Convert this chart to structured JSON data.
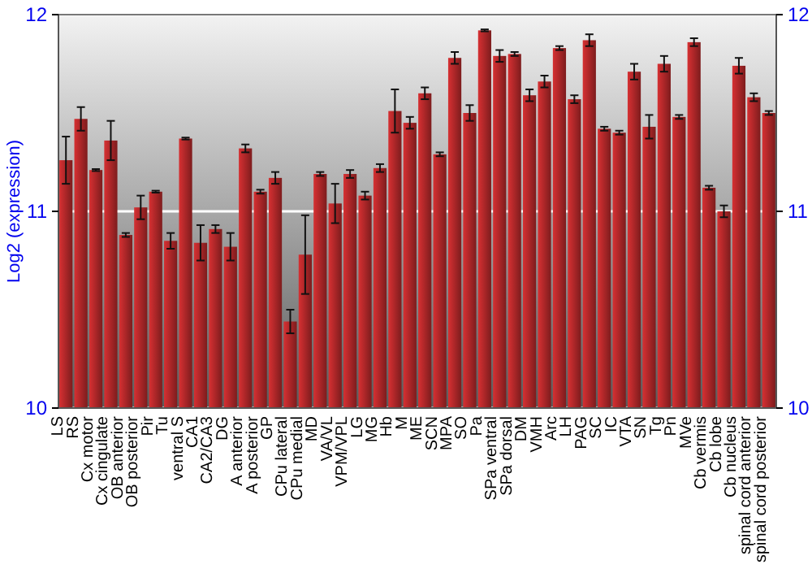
{
  "chart_data": {
    "type": "bar",
    "ylabel": "Log2 (expression)",
    "categories": [
      "LS",
      "RS",
      "Cx motor",
      "Cx cingulate",
      "OB anterior",
      "OB posterior",
      "Pir",
      "Tu",
      "ventral S",
      "CA1",
      "CA2/CA3",
      "DG",
      "A anterior",
      "A posterior",
      "GP",
      "CPu lateral",
      "CPu medial",
      "MD",
      "VA/VL",
      "VPM/VPL",
      "LG",
      "MG",
      "Hb",
      "M",
      "ME",
      "SCN",
      "MPA",
      "SO",
      "Pa",
      "SPa ventral",
      "SPa dorsal",
      "DM",
      "VMH",
      "Arc",
      "LH",
      "PAG",
      "SC",
      "IC",
      "VTA",
      "SN",
      "Tg",
      "Pn",
      "MVe",
      "Cb vermis",
      "Cb lobe",
      "Cb nucleus",
      "spinal cord anterior",
      "spinal cord posterior"
    ],
    "series": [
      {
        "color": "#b3282a",
        "values": [
          11.26,
          11.47,
          11.21,
          11.36,
          10.88,
          11.02,
          11.1,
          10.85,
          11.37,
          10.84,
          10.91,
          10.82,
          11.32,
          11.1,
          11.17,
          10.44,
          10.78,
          11.19,
          11.04,
          11.19,
          11.08,
          11.22,
          11.51,
          11.45,
          11.6,
          11.29,
          11.78,
          11.5,
          11.92,
          11.79,
          11.8,
          11.59,
          11.66,
          11.83,
          11.57,
          11.87,
          11.42,
          11.4,
          11.71,
          11.43,
          11.75,
          11.48,
          11.86,
          11.12,
          11.0,
          11.74,
          11.58,
          11.5
        ],
        "errors": [
          0.12,
          0.06,
          0.005,
          0.1,
          0.01,
          0.06,
          0.005,
          0.04,
          0.005,
          0.09,
          0.02,
          0.07,
          0.02,
          0.01,
          0.03,
          0.06,
          0.2,
          0.01,
          0.1,
          0.02,
          0.02,
          0.02,
          0.11,
          0.03,
          0.03,
          0.01,
          0.03,
          0.04,
          0.005,
          0.03,
          0.01,
          0.03,
          0.03,
          0.01,
          0.02,
          0.03,
          0.01,
          0.01,
          0.04,
          0.06,
          0.04,
          0.01,
          0.02,
          0.01,
          0.03,
          0.04,
          0.02,
          0.01
        ]
      }
    ],
    "ylim": [
      10,
      12
    ],
    "yticks": [
      10,
      11,
      12
    ],
    "y2lim": [
      10,
      12
    ],
    "y2ticks": [
      10,
      11,
      12
    ],
    "grid": "y"
  }
}
